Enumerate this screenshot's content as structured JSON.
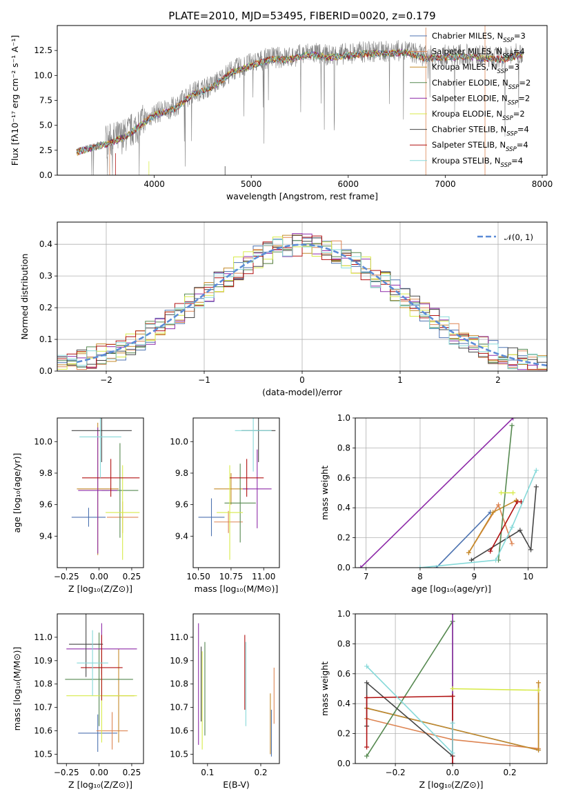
{
  "colors": [
    "#4c72b0",
    "#dd8452",
    "#c48a28",
    "#55884f",
    "#8d2aa8",
    "#d7ea47",
    "#454545",
    "#b00f0f",
    "#86d9d9"
  ],
  "chart_data": [
    {
      "id": "spectrum",
      "type": "line",
      "title": "PLATE=2010, MJD=53495, FIBERID=0020, z=0.179",
      "xlabel": "wavelength [Angstrom, rest frame]",
      "ylabel": "Flux [fλ10⁻¹⁷ erg cm⁻² s⁻¹ A⁻¹]",
      "xlim": [
        3000,
        8050
      ],
      "ylim": [
        0,
        15
      ],
      "xticks": [
        "4000",
        "5000",
        "6000",
        "7000",
        "8000"
      ],
      "yticks": [
        "0.0",
        "2.5",
        "5.0",
        "7.5",
        "10.0",
        "12.5"
      ],
      "data_color": "#808080",
      "data_anchors": {
        "x": [
          3200,
          3500,
          3700,
          3900,
          4000,
          4200,
          4400,
          4600,
          4800,
          5000,
          5200,
          5400,
          5600,
          5800,
          6000,
          6200,
          6400,
          6600,
          6800,
          7000,
          7200,
          7400,
          7600,
          7800
        ],
        "y": [
          2.5,
          3.3,
          4.0,
          5.5,
          6.2,
          6.8,
          8.3,
          9.0,
          10.5,
          11.2,
          11.8,
          11.8,
          12.3,
          12.0,
          12.2,
          12.4,
          12.4,
          12.5,
          11.9,
          12.0,
          12.1,
          11.9,
          11.8,
          12.3
        ]
      },
      "series": [
        {
          "name": "Chabrier MILES, N",
          "sub": "SSP",
          "suffix": "=3"
        },
        {
          "name": "Salpeter MILES, N",
          "sub": "SSP",
          "suffix": "=4"
        },
        {
          "name": "Kroupa MILES, N",
          "sub": "SSP",
          "suffix": "=3"
        },
        {
          "name": "Chabrier ELODIE, N",
          "sub": "SSP",
          "suffix": "=2"
        },
        {
          "name": "Salpeter ELODIE, N",
          "sub": "SSP",
          "suffix": "=2"
        },
        {
          "name": "Kroupa ELODIE, N",
          "sub": "SSP",
          "suffix": "=2"
        },
        {
          "name": "Chabrier STELIB, N",
          "sub": "SSP",
          "suffix": "=4"
        },
        {
          "name": "Salpeter STELIB, N",
          "sub": "SSP",
          "suffix": "=4"
        },
        {
          "name": "Kroupa STELIB, N",
          "sub": "SSP",
          "suffix": "=4"
        }
      ],
      "legend": "top-right"
    },
    {
      "id": "residuals",
      "type": "histogram",
      "xlabel": "(data-model)/error",
      "ylabel": "Normed distribution",
      "xlim": [
        -2.5,
        2.5
      ],
      "ylim": [
        0,
        0.47
      ],
      "xticks": [
        "−2",
        "−1",
        "0",
        "1",
        "2"
      ],
      "yticks": [
        "0.0",
        "0.1",
        "0.2",
        "0.3",
        "0.4"
      ],
      "grid": true,
      "reference": {
        "label": "𝒩(0, 1)",
        "mean": 0,
        "sigma": 1
      },
      "bin_width": 0.1,
      "legend": "top-right"
    },
    {
      "id": "age-vs-z",
      "type": "errorbar",
      "xlabel": "Z [log₁₀(Z/Z⊙)]",
      "ylabel": "age  [log₁₀(age/yr)]",
      "xlim": [
        -0.32,
        0.34
      ],
      "ylim": [
        9.2,
        10.15
      ],
      "xticks": [
        "−0.25",
        "0.00",
        "0.25"
      ],
      "yticks": [
        "9.4",
        "9.6",
        "9.8",
        "10.0"
      ],
      "points": [
        {
          "x": -0.08,
          "xerr": 0.13,
          "y": 9.52,
          "yerr": 0.06,
          "c": 0
        },
        {
          "x": 0.18,
          "xerr": 0.12,
          "y": 9.52,
          "yerr": 0.1,
          "c": 1
        },
        {
          "x": -0.01,
          "xerr": 0.16,
          "y": 9.7,
          "yerr": 0.42,
          "c": 2
        },
        {
          "x": 0.16,
          "xerr": 0.14,
          "y": 9.69,
          "yerr": 0.3,
          "c": 3
        },
        {
          "x": -0.01,
          "xerr": 0.15,
          "y": 9.69,
          "yerr": 0.4,
          "c": 4
        },
        {
          "x": 0.18,
          "xerr": 0.13,
          "y": 9.55,
          "yerr": 0.3,
          "c": 5
        },
        {
          "x": 0.02,
          "xerr": 0.23,
          "y": 10.07,
          "yerr": 0.2,
          "c": 6
        },
        {
          "x": 0.09,
          "xerr": 0.22,
          "y": 9.77,
          "yerr": 0.12,
          "c": 7
        },
        {
          "x": 0.01,
          "xerr": 0.16,
          "y": 10.03,
          "yerr": 0.26,
          "c": 8
        }
      ]
    },
    {
      "id": "age-vs-mass",
      "type": "errorbar",
      "xlabel": "mass [log₁₀(M/M⊙)]",
      "ylabel": "",
      "xlim": [
        10.46,
        11.12
      ],
      "ylim": [
        9.2,
        10.15
      ],
      "xticks": [
        "10.50",
        "10.75",
        "11.00"
      ],
      "yticks": [
        "9.4",
        "9.6",
        "9.8",
        "10.0"
      ],
      "points": [
        {
          "x": 10.6,
          "xerr": 0.1,
          "y": 9.52,
          "yerr": 0.12,
          "c": 0
        },
        {
          "x": 10.73,
          "xerr": 0.11,
          "y": 9.49,
          "yerr": 0.07,
          "c": 1
        },
        {
          "x": 10.75,
          "xerr": 0.13,
          "y": 9.7,
          "yerr": 0.1,
          "c": 2
        },
        {
          "x": 10.82,
          "xerr": 0.12,
          "y": 9.61,
          "yerr": 0.25,
          "c": 3
        },
        {
          "x": 10.95,
          "xerr": 0.11,
          "y": 9.7,
          "yerr": 0.25,
          "c": 4
        },
        {
          "x": 10.74,
          "xerr": 0.1,
          "y": 9.55,
          "yerr": 0.3,
          "c": 5
        },
        {
          "x": 10.96,
          "xerr": 0.13,
          "y": 10.07,
          "yerr": 0.2,
          "c": 6
        },
        {
          "x": 10.87,
          "xerr": 0.13,
          "y": 9.77,
          "yerr": 0.12,
          "c": 7
        },
        {
          "x": 10.92,
          "xerr": 0.14,
          "y": 10.07,
          "yerr": 0.26,
          "c": 8
        }
      ]
    },
    {
      "id": "mass-weight-vs-age",
      "type": "line",
      "xlabel": "age  [log₁₀(age/yr)]",
      "ylabel": "mass weight",
      "xlim": [
        6.8,
        10.35
      ],
      "ylim": [
        0,
        1
      ],
      "xticks": [
        "7",
        "8",
        "9",
        "10"
      ],
      "yticks": [
        "0.0",
        "0.2",
        "0.4",
        "0.6",
        "0.8",
        "1.0"
      ],
      "grid": true,
      "series": [
        {
          "c": 0,
          "x": [
            8.3,
            9.3
          ],
          "y": [
            0.0,
            0.37
          ]
        },
        {
          "c": 1,
          "x": [
            8.9,
            9.45,
            9.7
          ],
          "y": [
            0.1,
            0.42,
            0.16
          ]
        },
        {
          "c": 2,
          "x": [
            8.9,
            9.35,
            9.78
          ],
          "y": [
            0.1,
            0.37,
            0.45
          ]
        },
        {
          "c": 3,
          "x": [
            9.45,
            9.7
          ],
          "y": [
            0.05,
            0.95
          ]
        },
        {
          "c": 4,
          "x": [
            6.9,
            9.72
          ],
          "y": [
            0.0,
            1.0
          ]
        },
        {
          "c": 5,
          "x": [
            9.5,
            9.72
          ],
          "y": [
            0.5,
            0.5
          ]
        },
        {
          "c": 6,
          "x": [
            8.95,
            9.85,
            10.05,
            10.15
          ],
          "y": [
            0.05,
            0.25,
            0.12,
            0.54
          ]
        },
        {
          "c": 7,
          "x": [
            9.3,
            9.8,
            9.87
          ],
          "y": [
            0.11,
            0.44,
            0.44
          ]
        },
        {
          "c": 8,
          "x": [
            8.0,
            9.4,
            9.7,
            10.15
          ],
          "y": [
            0.0,
            0.05,
            0.27,
            0.65
          ]
        }
      ]
    },
    {
      "id": "mass-vs-z",
      "type": "errorbar",
      "xlabel": "Z [log₁₀(Z/Z⊙)]",
      "ylabel": "mass [log₁₀(M/M⊙)]",
      "xlim": [
        -0.32,
        0.34
      ],
      "ylim": [
        10.46,
        11.1
      ],
      "xticks": [
        "−0.25",
        "0.00",
        "0.25"
      ],
      "yticks": [
        "10.5",
        "10.6",
        "10.7",
        "10.8",
        "10.9",
        "11.0"
      ],
      "points": [
        {
          "x": -0.01,
          "xerr": 0.15,
          "y": 10.59,
          "yerr": 0.08,
          "c": 0
        },
        {
          "x": 0.1,
          "xerr": 0.12,
          "y": 10.6,
          "yerr": 0.08,
          "c": 1
        },
        {
          "x": 0.15,
          "xerr": 0.12,
          "y": 10.75,
          "yerr": 0.2,
          "c": 2
        },
        {
          "x": 0.0,
          "xerr": 0.26,
          "y": 10.82,
          "yerr": 0.2,
          "c": 3
        },
        {
          "x": 0.02,
          "xerr": 0.27,
          "y": 10.95,
          "yerr": 0.11,
          "c": 4
        },
        {
          "x": 0.02,
          "xerr": 0.27,
          "y": 10.75,
          "yerr": 0.2,
          "c": 5
        },
        {
          "x": -0.1,
          "xerr": 0.13,
          "y": 10.97,
          "yerr": 0.14,
          "c": 6
        },
        {
          "x": 0.02,
          "xerr": 0.16,
          "y": 10.87,
          "yerr": 0.14,
          "c": 7
        },
        {
          "x": -0.05,
          "xerr": 0.12,
          "y": 10.89,
          "yerr": 0.14,
          "c": 8
        }
      ]
    },
    {
      "id": "mass-vs-ebv",
      "type": "errorbar",
      "xlabel": "E(B-V)",
      "ylabel": "",
      "xlim": [
        0.073,
        0.235
      ],
      "ylim": [
        10.46,
        11.1
      ],
      "xticks": [
        "0.1",
        "0.2"
      ],
      "yticks": [
        "10.5",
        "10.6",
        "10.7",
        "10.8",
        "10.9",
        "11.0"
      ],
      "points": [
        {
          "x": 0.22,
          "xerr": 0,
          "y": 10.59,
          "yerr": 0.1,
          "c": 0
        },
        {
          "x": 0.225,
          "xerr": 0,
          "y": 10.75,
          "yerr": 0.12,
          "c": 1
        },
        {
          "x": 0.218,
          "xerr": 0,
          "y": 10.63,
          "yerr": 0.13,
          "c": 2
        },
        {
          "x": 0.095,
          "xerr": 0,
          "y": 10.78,
          "yerr": 0.2,
          "c": 3
        },
        {
          "x": 0.083,
          "xerr": 0,
          "y": 10.8,
          "yerr": 0.26,
          "c": 4
        },
        {
          "x": 0.09,
          "xerr": 0,
          "y": 10.73,
          "yerr": 0.21,
          "c": 5
        },
        {
          "x": 0.088,
          "xerr": 0,
          "y": 10.8,
          "yerr": 0.16,
          "c": 6
        },
        {
          "x": 0.17,
          "xerr": 0,
          "y": 10.85,
          "yerr": 0.16,
          "c": 7
        },
        {
          "x": 0.172,
          "xerr": 0,
          "y": 10.8,
          "yerr": 0.18,
          "c": 8
        }
      ]
    },
    {
      "id": "mass-weight-vs-z",
      "type": "line",
      "xlabel": "Z [log₁₀(Z/Z⊙)]",
      "ylabel": "mass weight",
      "xlim": [
        -0.34,
        0.33
      ],
      "ylim": [
        0,
        1
      ],
      "xticks": [
        "−0.2",
        "0.0",
        "0.2"
      ],
      "yticks": [
        "0.0",
        "0.2",
        "0.4",
        "0.6",
        "0.8",
        "1.0"
      ],
      "grid": true,
      "series": [
        {
          "c": 0,
          "x": [
            -0.3,
            0.3
          ],
          "y": [
            0.37,
            0.09
          ]
        },
        {
          "c": 1,
          "x": [
            -0.3,
            0.0,
            0.3,
            0.3
          ],
          "y": [
            0.3,
            0.16,
            0.1,
            0.54
          ]
        },
        {
          "c": 2,
          "x": [
            -0.3,
            0.3,
            0.3
          ],
          "y": [
            0.37,
            0.09,
            0.54
          ]
        },
        {
          "c": 3,
          "x": [
            -0.3,
            0.0,
            0.0
          ],
          "y": [
            0.05,
            0.95,
            0.0
          ]
        },
        {
          "c": 4,
          "x": [
            0.0,
            0.0
          ],
          "y": [
            0.0,
            1.0
          ]
        },
        {
          "c": 5,
          "x": [
            0.0,
            0.3
          ],
          "y": [
            0.5,
            0.49
          ]
        },
        {
          "c": 6,
          "x": [
            -0.3,
            -0.3,
            0.0
          ],
          "y": [
            0.25,
            0.54,
            0.05
          ]
        },
        {
          "c": 7,
          "x": [
            -0.3,
            -0.3,
            0.0,
            0.0
          ],
          "y": [
            0.11,
            0.44,
            0.45,
            0.0
          ]
        },
        {
          "c": 8,
          "x": [
            -0.3,
            0.0,
            0.0
          ],
          "y": [
            0.65,
            0.07,
            0.27
          ]
        }
      ]
    }
  ]
}
